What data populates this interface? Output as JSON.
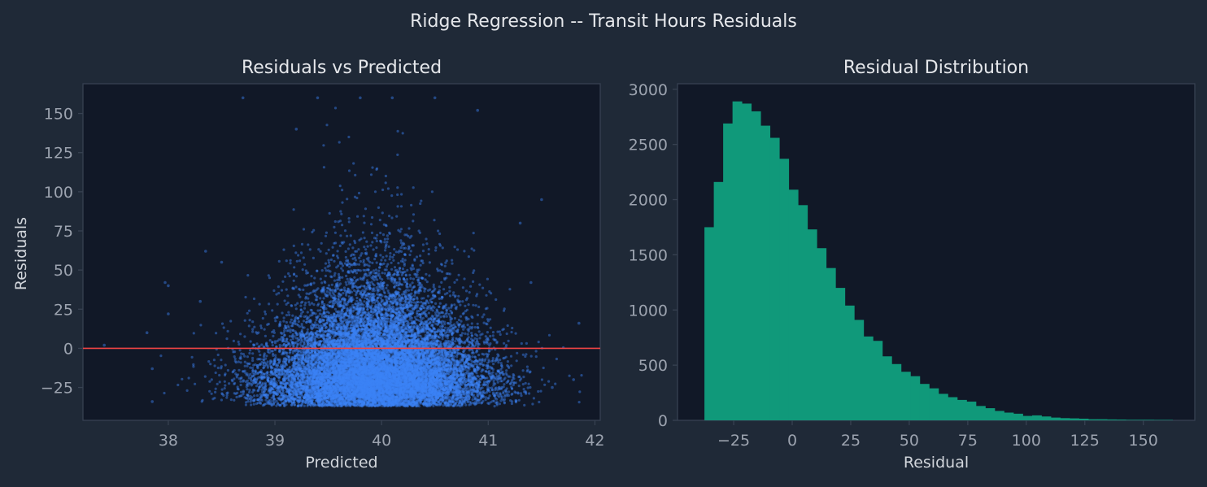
{
  "figure": {
    "suptitle": "Ridge Regression -- Transit Hours Residuals"
  },
  "colors": {
    "figure_bg": "#1f2937",
    "axes_bg": "#111827",
    "spine": "#374151",
    "title_text": "#e5e7eb",
    "tick_text": "#9ca3af",
    "label_text": "#d1d5db",
    "scatter": "#3b82f6",
    "zero_line": "#ef4444",
    "histogram": "#10997a"
  },
  "chart_data": [
    {
      "type": "scatter",
      "title": "Residuals vs Predicted",
      "xlabel": "Predicted",
      "ylabel": "Residuals",
      "xlim": [
        37.2,
        42.05
      ],
      "ylim": [
        -46,
        169
      ],
      "xticks": [
        38,
        39,
        40,
        41,
        42
      ],
      "yticks": [
        -25,
        0,
        25,
        50,
        75,
        100,
        125,
        150
      ],
      "reference_line": {
        "y": 0,
        "color": "#ef4444"
      },
      "approx_points": 30000,
      "distribution": {
        "x_center": 39.95,
        "x_sd": 0.5,
        "residual_min": -37,
        "residual_max": 162,
        "residual_mode": -22
      },
      "sample_points": [
        {
          "x": 37.4,
          "y": 2
        },
        {
          "x": 37.8,
          "y": 10
        },
        {
          "x": 37.85,
          "y": -13
        },
        {
          "x": 37.85,
          "y": -34
        },
        {
          "x": 37.97,
          "y": 42
        },
        {
          "x": 38.0,
          "y": 40
        },
        {
          "x": 38.0,
          "y": 22
        },
        {
          "x": 38.3,
          "y": 30
        },
        {
          "x": 38.35,
          "y": 62
        },
        {
          "x": 38.5,
          "y": 55
        },
        {
          "x": 38.7,
          "y": 160
        },
        {
          "x": 39.2,
          "y": 140
        },
        {
          "x": 39.4,
          "y": 160
        },
        {
          "x": 39.8,
          "y": 160
        },
        {
          "x": 40.1,
          "y": 160
        },
        {
          "x": 40.5,
          "y": 160
        },
        {
          "x": 40.9,
          "y": 152
        },
        {
          "x": 41.3,
          "y": 80
        },
        {
          "x": 41.5,
          "y": 95
        },
        {
          "x": 41.4,
          "y": 42
        },
        {
          "x": 41.6,
          "y": -25
        },
        {
          "x": 41.8,
          "y": -20
        },
        {
          "x": 41.85,
          "y": 16
        }
      ]
    },
    {
      "type": "bar",
      "title": "Residual Distribution",
      "xlabel": "Residual",
      "ylabel": "",
      "xlim": [
        -49,
        172
      ],
      "ylim": [
        0,
        3050
      ],
      "xticks": [
        -25,
        0,
        25,
        50,
        75,
        100,
        125,
        150
      ],
      "yticks": [
        0,
        500,
        1000,
        1500,
        2000,
        2500,
        3000
      ],
      "bin_start": -37.5,
      "bin_width": 4,
      "counts": [
        1750,
        2160,
        2690,
        2890,
        2870,
        2800,
        2670,
        2560,
        2370,
        2090,
        1950,
        1730,
        1560,
        1380,
        1200,
        1040,
        910,
        760,
        720,
        580,
        510,
        440,
        400,
        330,
        290,
        240,
        210,
        185,
        170,
        130,
        110,
        85,
        70,
        60,
        40,
        45,
        35,
        25,
        20,
        18,
        15,
        10,
        10,
        8,
        7,
        5,
        5,
        5,
        4,
        4
      ]
    }
  ]
}
